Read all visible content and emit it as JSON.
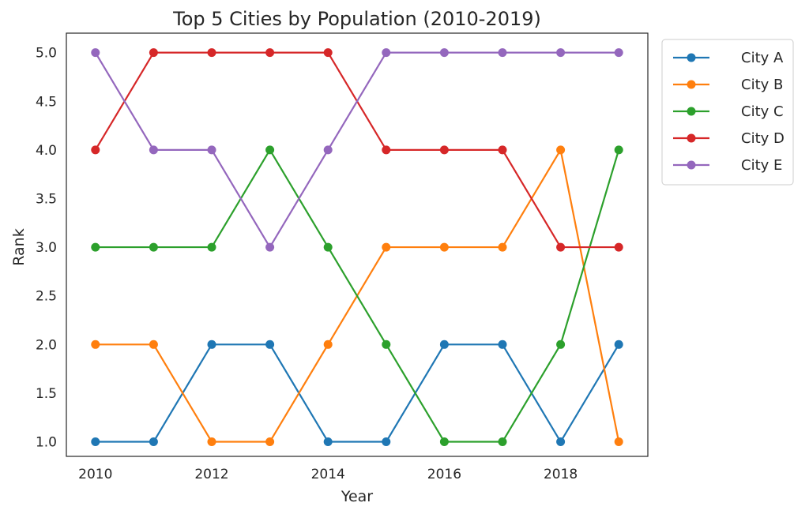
{
  "chart_data": {
    "type": "line",
    "title": "Top 5 Cities by Population (2010-2019)",
    "xlabel": "Year",
    "ylabel": "Rank",
    "x": [
      2010,
      2011,
      2012,
      2013,
      2014,
      2015,
      2016,
      2017,
      2018,
      2019
    ],
    "xlim": [
      2009.5,
      2019.5
    ],
    "ylim": [
      0.85,
      5.2
    ],
    "xticks": [
      2010,
      2012,
      2014,
      2016,
      2018
    ],
    "yticks": [
      1.0,
      1.5,
      2.0,
      2.5,
      3.0,
      3.5,
      4.0,
      4.5,
      5.0
    ],
    "ytick_labels": [
      "1.0",
      "1.5",
      "2.0",
      "2.5",
      "3.0",
      "3.5",
      "4.0",
      "4.5",
      "5.0"
    ],
    "grid": false,
    "legend_position": "outside-top-right",
    "series": [
      {
        "name": "City A",
        "color": "#1f77b4",
        "values": [
          1,
          1,
          2,
          2,
          1,
          1,
          2,
          2,
          1,
          2
        ]
      },
      {
        "name": "City B",
        "color": "#ff7f0e",
        "values": [
          2,
          2,
          1,
          1,
          2,
          3,
          3,
          3,
          4,
          1
        ]
      },
      {
        "name": "City C",
        "color": "#2ca02c",
        "values": [
          3,
          3,
          3,
          4,
          3,
          2,
          1,
          1,
          2,
          4
        ]
      },
      {
        "name": "City D",
        "color": "#d62728",
        "values": [
          4,
          5,
          5,
          5,
          5,
          4,
          4,
          4,
          3,
          3
        ]
      },
      {
        "name": "City E",
        "color": "#9467bd",
        "values": [
          5,
          4,
          4,
          3,
          4,
          5,
          5,
          5,
          5,
          5
        ]
      }
    ]
  }
}
